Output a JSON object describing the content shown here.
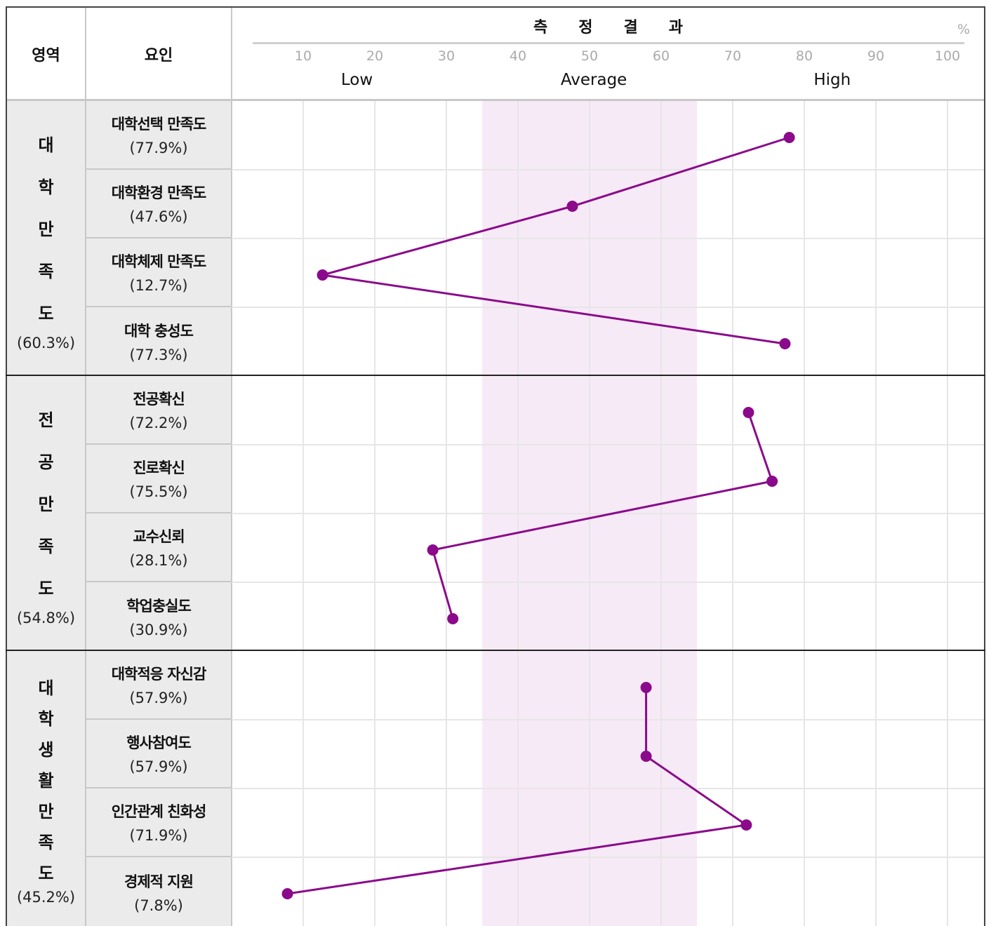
{
  "header": {
    "area_label": "영역",
    "factor_label": "요인",
    "result_title": "측정결과",
    "unit": "%",
    "bands": [
      "Low",
      "Average",
      "High"
    ]
  },
  "groups": [
    {
      "chars": [
        "대",
        "학",
        "만",
        "족",
        "도"
      ],
      "pct": "(60.3%)",
      "factors": [
        {
          "name": "대학선택 만족도",
          "pct": "(77.9%)"
        },
        {
          "name": "대학환경 만족도",
          "pct": "(47.6%)"
        },
        {
          "name": "대학체제 만족도",
          "pct": "(12.7%)"
        },
        {
          "name": "대학 충성도",
          "pct": "(77.3%)"
        }
      ]
    },
    {
      "chars": [
        "전",
        "공",
        "만",
        "족",
        "도"
      ],
      "pct": "(54.8%)",
      "factors": [
        {
          "name": "전공확신",
          "pct": "(72.2%)"
        },
        {
          "name": "진로확신",
          "pct": "(75.5%)"
        },
        {
          "name": "교수신뢰",
          "pct": "(28.1%)"
        },
        {
          "name": "학업충실도",
          "pct": "(30.9%)"
        }
      ]
    },
    {
      "chars": [
        "대",
        "학",
        "생",
        "활",
        "만",
        "족",
        "도"
      ],
      "pct": "(45.2%)",
      "factors": [
        {
          "name": "대학적응 자신감",
          "pct": "(57.9%)"
        },
        {
          "name": "행사참여도",
          "pct": "(57.9%)"
        },
        {
          "name": "인간관계 친화성",
          "pct": "(71.9%)"
        },
        {
          "name": "경제적 지원",
          "pct": "(7.8%)"
        }
      ]
    }
  ],
  "chart_data": {
    "type": "line",
    "orientation": "horizontal-values",
    "xlim": [
      0,
      100
    ],
    "ticks": [
      "10",
      "20",
      "30",
      "40",
      "50",
      "60",
      "70",
      "80",
      "90",
      "100"
    ],
    "average_band": [
      35,
      65
    ],
    "band_labels": [
      "Low",
      "Average",
      "High"
    ],
    "unit": "%",
    "series": [
      {
        "values": [
          77.9,
          47.6,
          12.7,
          77.3
        ]
      },
      {
        "values": [
          72.2,
          75.5,
          28.1,
          30.9
        ]
      },
      {
        "values": [
          57.9,
          57.9,
          71.9,
          7.8
        ]
      }
    ],
    "colors": {
      "line": "#8b0a8b",
      "band": "#f7eaf7",
      "grid": "#e6e6e6"
    }
  }
}
